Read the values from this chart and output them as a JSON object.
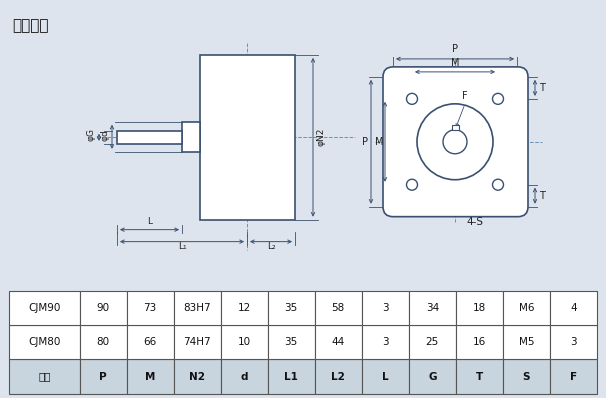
{
  "title": "减速装置",
  "bg_color": "#dde4ed",
  "line_color": "#3a5070",
  "dim_line_color": "#7090b0",
  "table_headers": [
    "型号",
    "P",
    "M",
    "N2",
    "d",
    "L1",
    "L2",
    "L",
    "G",
    "T",
    "S",
    "F"
  ],
  "table_rows": [
    [
      "CJM80",
      "80",
      "66",
      "74H7",
      "10",
      "35",
      "44",
      "3",
      "25",
      "16",
      "M5",
      "3"
    ],
    [
      "CJM90",
      "90",
      "73",
      "83H7",
      "12",
      "35",
      "58",
      "3",
      "34",
      "18",
      "M6",
      "4"
    ]
  ]
}
